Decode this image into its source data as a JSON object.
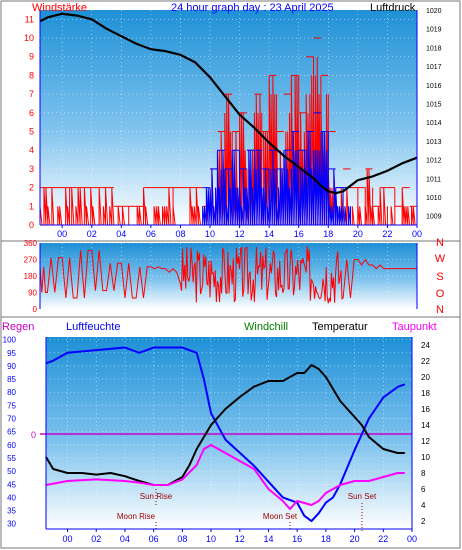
{
  "colors": {
    "frame": "#0000ff",
    "wind_speed": "#ff0000",
    "wind_gust": "#0000ff",
    "pressure": "#000000",
    "wind_dir": "#ff0000",
    "humidity": "#0000ff",
    "temperature": "#000000",
    "dewpoint": "#ff00ff",
    "windchill": "#008000",
    "rain": "#cc00cc",
    "markers": "#990000",
    "sky_top": "#1e90d6",
    "sky_bottom": "#ffffff"
  },
  "chart_data": [
    {
      "type": "bar+line",
      "name": "wind-pressure",
      "title": "24 hour graph day : 23 April 2025",
      "left_label": "Windstärke",
      "right_label": "Luftdruck",
      "x_ticks": [
        "00",
        "02",
        "04",
        "06",
        "08",
        "10",
        "12",
        "14",
        "16",
        "18",
        "20",
        "22",
        "00"
      ],
      "y_left_ticks": [
        0,
        1,
        2,
        3,
        4,
        5,
        6,
        7,
        8,
        9,
        10,
        11
      ],
      "y_left_range": [
        0,
        11.5
      ],
      "y_right_ticks": [
        1009,
        1010,
        1011,
        1012,
        1013,
        1014,
        1015,
        1016,
        1017,
        1018,
        1019,
        1020
      ],
      "y_right_range": [
        1008.5,
        1020
      ],
      "pressure": {
        "hours": [
          -1.5,
          -1,
          0,
          1,
          2,
          3,
          4,
          5,
          6,
          7,
          8,
          9,
          10,
          11,
          12,
          13,
          14,
          15,
          16,
          17,
          17.5,
          18,
          18.5,
          19,
          19.5,
          20,
          21,
          22,
          23,
          24
        ],
        "values": [
          1019.4,
          1019.6,
          1019.8,
          1019.7,
          1019.5,
          1019.0,
          1018.6,
          1018.2,
          1017.9,
          1017.8,
          1017.6,
          1017.2,
          1016.4,
          1015.4,
          1014.4,
          1013.7,
          1012.9,
          1012.2,
          1011.6,
          1011.0,
          1010.6,
          1010.3,
          1010.2,
          1010.3,
          1010.6,
          1010.9,
          1011.1,
          1011.4,
          1011.8,
          1012.1
        ]
      },
      "wind_speed": {
        "hours": [
          -1.5,
          0.5,
          1.5,
          2.5,
          3.5,
          4.5,
          5.5,
          6.5,
          7.5,
          8.5,
          9.5,
          10.0,
          10.5,
          11.0,
          11.5,
          12.0,
          12.5,
          13.0,
          13.5,
          14.0,
          14.5,
          15.0,
          15.5,
          16.0,
          16.5,
          17.0,
          17.5,
          18.0,
          18.5,
          19.0,
          19.5,
          20.0,
          20.5,
          21.0,
          21.5,
          22.0,
          22.5,
          23.0,
          23.5
        ],
        "values": [
          2,
          2,
          2,
          2,
          1,
          1,
          2,
          2,
          2,
          2,
          1,
          3,
          5,
          7,
          5,
          6,
          4,
          7,
          5,
          8,
          5,
          7,
          8,
          6,
          9,
          10,
          8,
          5,
          2,
          3,
          2,
          2,
          3,
          1,
          2,
          2,
          1,
          2,
          1
        ]
      },
      "wind_gust": {
        "hours": [
          9.5,
          10.0,
          10.5,
          11.0,
          11.5,
          12.0,
          12.5,
          13.0,
          13.5,
          14.0,
          14.5,
          15.0,
          15.5,
          16.0,
          16.5,
          17.0,
          17.5,
          18.0,
          18.5,
          19.0
        ],
        "values": [
          2,
          3,
          4,
          3,
          4,
          3,
          4,
          4,
          3,
          4,
          3,
          4,
          5,
          4,
          5,
          6,
          5,
          3,
          2,
          2
        ]
      }
    },
    {
      "type": "line",
      "name": "wind-direction",
      "y_ticks": [
        0,
        90,
        180,
        270,
        360
      ],
      "y_range": [
        0,
        360
      ],
      "compass_labels": [
        "N",
        "W",
        "S",
        "O",
        "N"
      ],
      "hours": [
        -1.5,
        -1,
        0,
        1,
        2,
        3,
        4,
        5,
        6,
        7,
        8,
        9,
        10,
        11,
        12,
        13,
        14,
        15,
        16,
        17,
        18,
        19,
        20,
        21,
        22,
        23,
        24
      ],
      "values": [
        230,
        90,
        280,
        60,
        320,
        100,
        250,
        60,
        230,
        220,
        200,
        60,
        300,
        150,
        280,
        120,
        320,
        100,
        260,
        80,
        300,
        60,
        270,
        240,
        220,
        220,
        220
      ]
    },
    {
      "type": "line",
      "name": "temperature-humidity",
      "left_label": "Regen",
      "humidity_label": "Luftfeuchte",
      "windchill_label": "Windchill",
      "temperature_label": "Temperatur",
      "dewpoint_label": "Taupunkt",
      "rain_value_label": "0",
      "x_ticks": [
        "00",
        "02",
        "04",
        "06",
        "08",
        "10",
        "12",
        "14",
        "16",
        "18",
        "20",
        "22",
        "00"
      ],
      "y_left_ticks": [
        30,
        35,
        40,
        45,
        50,
        55,
        60,
        65,
        70,
        75,
        80,
        85,
        90,
        95,
        100
      ],
      "y_left_range": [
        28,
        101
      ],
      "y_right_ticks": [
        2,
        4,
        6,
        8,
        10,
        12,
        14,
        16,
        18,
        20,
        22,
        24
      ],
      "y_right_range": [
        1,
        25
      ],
      "annotations": [
        "Sun Rise",
        "Moon Rise",
        "Moon Set",
        "Sun Set"
      ],
      "humidity": {
        "hours": [
          -1.5,
          -1,
          0,
          2,
          4,
          5,
          6,
          8,
          9,
          9.5,
          10,
          11,
          12,
          13,
          14,
          15,
          16,
          16.5,
          17,
          17.5,
          18,
          18.5,
          19,
          20,
          21,
          22,
          23,
          23.5
        ],
        "values": [
          91,
          92,
          95,
          96,
          97,
          95,
          97,
          97,
          95,
          85,
          72,
          62,
          57,
          52,
          46,
          40,
          38,
          33,
          31,
          34,
          38,
          40,
          45,
          58,
          70,
          78,
          82,
          83
        ]
      },
      "temperature": {
        "hours": [
          -1.5,
          -1,
          0,
          1,
          2,
          3,
          4,
          5,
          6,
          7,
          8,
          8.5,
          9,
          9.5,
          10,
          11,
          12,
          13,
          14,
          15,
          15.5,
          16,
          16.5,
          17,
          17.5,
          18,
          18.5,
          19,
          20,
          20.5,
          21,
          22,
          23,
          23.5
        ],
        "values": [
          10.0,
          8.5,
          8.0,
          8.0,
          7.8,
          8.0,
          7.6,
          7.0,
          6.5,
          6.5,
          7.5,
          9.0,
          11.0,
          12.5,
          14.0,
          16.0,
          17.5,
          18.8,
          19.5,
          19.5,
          20.0,
          20.5,
          20.5,
          21.5,
          21.0,
          20.0,
          18.5,
          17.0,
          15.0,
          14.0,
          12.5,
          11.0,
          10.5,
          10.5
        ]
      },
      "dewpoint": {
        "hours": [
          -1.5,
          0,
          2,
          4,
          5,
          6,
          7,
          8,
          9,
          9.5,
          10,
          11,
          12,
          13,
          14,
          15,
          15.5,
          16,
          17,
          17.5,
          18,
          18.5,
          19,
          20,
          21,
          22,
          23,
          23.5
        ],
        "values": [
          6.5,
          7.0,
          7.2,
          7.0,
          6.8,
          6.5,
          6.5,
          7.2,
          9.0,
          11.0,
          11.5,
          10.5,
          9.5,
          8.5,
          6.0,
          4.5,
          3.5,
          4.5,
          4.0,
          4.5,
          5.5,
          6.0,
          6.5,
          7.0,
          7.0,
          7.5,
          8.0,
          8.0
        ]
      },
      "rain_level": 0
    }
  ]
}
